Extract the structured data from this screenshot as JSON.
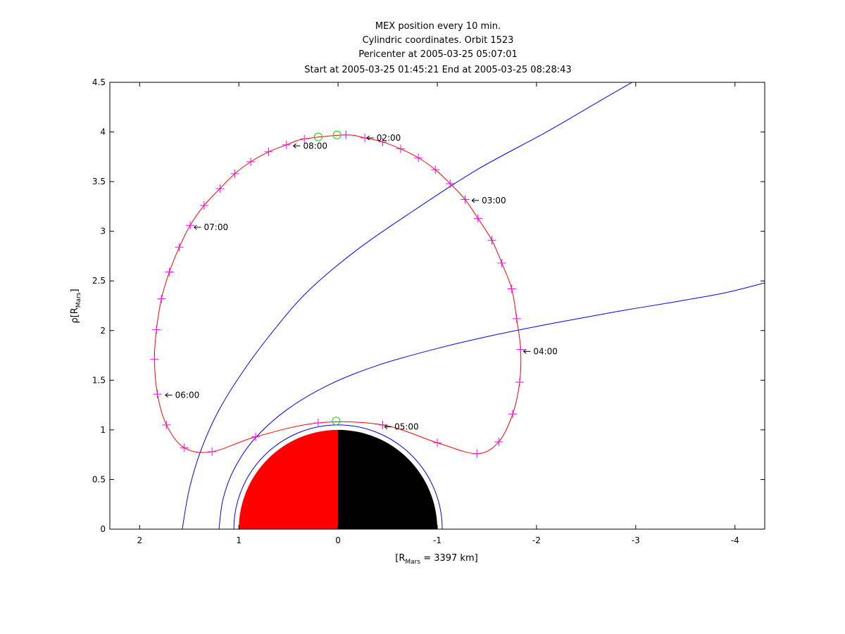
{
  "chart_data": {
    "type": "line",
    "title_lines": [
      "MEX position every 10 min.",
      "Cylindric coordinates. Orbit 1523",
      "Pericenter at 2005-03-25 05:07:01",
      "Start at 2005-03-25 01:45:21 End at 2005-03-25 08:28:43"
    ],
    "xlabel": {
      "main": "[R",
      "sub": "Mars",
      "rest": " = 3397 km]"
    },
    "ylabel": {
      "main": "ρ[R",
      "sub": "Mars",
      "rest": "]"
    },
    "xlim": [
      2.3,
      -4.3
    ],
    "ylim": [
      0,
      4.5
    ],
    "xticks": [
      2,
      1,
      0,
      -1,
      -2,
      -3,
      -4
    ],
    "xtick_labels": [
      "2",
      "1",
      "0",
      "-1",
      "-2",
      "-3",
      "-4"
    ],
    "yticks": [
      0,
      0.5,
      1,
      1.5,
      2,
      2.5,
      3,
      3.5,
      4,
      4.5
    ],
    "ytick_labels": [
      "0",
      "0.5",
      "1",
      "1.5",
      "2",
      "2.5",
      "3",
      "3.5",
      "4",
      "4.5"
    ],
    "colors": {
      "orbit": "#ff0000",
      "markers": "#ff00ff",
      "boundaries": "#0000ff",
      "circles": "#00dd00",
      "mars_day": "#ff0000",
      "mars_night": "#000000"
    },
    "orbit_markers": [
      [
        -0.08,
        3.97
      ],
      [
        -0.27,
        3.94
      ],
      [
        -0.45,
        3.9
      ],
      [
        -0.63,
        3.83
      ],
      [
        -0.81,
        3.74
      ],
      [
        -0.98,
        3.62
      ],
      [
        -1.13,
        3.48
      ],
      [
        -1.28,
        3.32
      ],
      [
        -1.41,
        3.13
      ],
      [
        -1.55,
        2.91
      ],
      [
        -1.65,
        2.68
      ],
      [
        -1.75,
        2.42
      ],
      [
        -1.8,
        2.12
      ],
      [
        -1.84,
        1.81
      ],
      [
        -1.83,
        1.48
      ],
      [
        -1.76,
        1.16
      ],
      [
        -1.62,
        0.88
      ],
      [
        -1.4,
        0.76
      ],
      [
        -1.0,
        0.87
      ],
      [
        -0.45,
        1.05
      ],
      [
        0.2,
        1.07
      ],
      [
        0.83,
        0.93
      ],
      [
        1.27,
        0.78
      ],
      [
        1.55,
        0.82
      ],
      [
        1.73,
        1.05
      ],
      [
        1.82,
        1.36
      ],
      [
        1.85,
        1.71
      ],
      [
        1.83,
        2.01
      ],
      [
        1.78,
        2.32
      ],
      [
        1.7,
        2.59
      ],
      [
        1.6,
        2.84
      ],
      [
        1.49,
        3.06
      ],
      [
        1.35,
        3.26
      ],
      [
        1.19,
        3.43
      ],
      [
        1.04,
        3.58
      ],
      [
        0.88,
        3.7
      ],
      [
        0.7,
        3.8
      ],
      [
        0.52,
        3.87
      ],
      [
        0.34,
        3.93
      ]
    ],
    "circle_markers": [
      [
        0.2,
        3.95
      ],
      [
        0.01,
        3.97
      ],
      [
        0.02,
        1.09
      ]
    ],
    "time_labels": [
      {
        "text": "02:00",
        "x": -0.26,
        "y": 3.94
      },
      {
        "text": "03:00",
        "x": -1.32,
        "y": 3.31
      },
      {
        "text": "04:00",
        "x": -1.84,
        "y": 1.79
      },
      {
        "text": "05:00",
        "x": -0.44,
        "y": 1.03
      },
      {
        "text": "06:00",
        "x": 1.77,
        "y": 1.35
      },
      {
        "text": "07:00",
        "x": 1.48,
        "y": 3.04
      },
      {
        "text": "08:00",
        "x": 0.48,
        "y": 3.86
      }
    ],
    "boundary_bow_shock": [
      [
        1.57,
        0
      ],
      [
        1.5,
        0.4
      ],
      [
        1.38,
        0.8
      ],
      [
        1.2,
        1.2
      ],
      [
        0.95,
        1.6
      ],
      [
        0.65,
        2.0
      ],
      [
        0.3,
        2.4
      ],
      [
        -0.2,
        2.82
      ],
      [
        -0.78,
        3.22
      ],
      [
        -1.4,
        3.62
      ],
      [
        -2.1,
        4.0
      ],
      [
        -2.65,
        4.32
      ],
      [
        -3.05,
        4.55
      ]
    ],
    "boundary_mpb": [
      [
        1.2,
        0
      ],
      [
        1.16,
        0.3
      ],
      [
        1.05,
        0.6
      ],
      [
        0.85,
        0.9
      ],
      [
        0.52,
        1.2
      ],
      [
        0.1,
        1.45
      ],
      [
        -0.4,
        1.65
      ],
      [
        -1.0,
        1.82
      ],
      [
        -1.6,
        1.96
      ],
      [
        -2.2,
        2.08
      ],
      [
        -2.8,
        2.19
      ],
      [
        -3.4,
        2.29
      ],
      [
        -3.9,
        2.38
      ],
      [
        -4.3,
        2.48
      ]
    ],
    "boundary_ring": {
      "radius": 1.05
    }
  }
}
